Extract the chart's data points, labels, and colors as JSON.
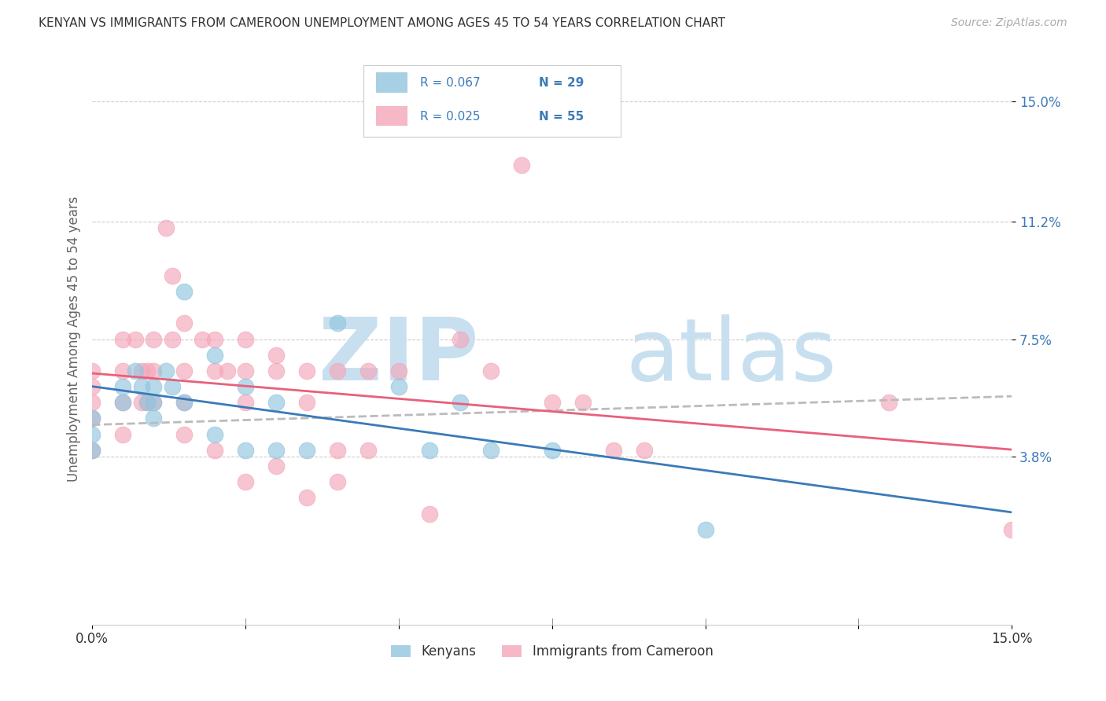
{
  "title": "KENYAN VS IMMIGRANTS FROM CAMEROON UNEMPLOYMENT AMONG AGES 45 TO 54 YEARS CORRELATION CHART",
  "source": "Source: ZipAtlas.com",
  "ylabel": "Unemployment Among Ages 45 to 54 years",
  "ytick_labels": [
    "15.0%",
    "11.2%",
    "7.5%",
    "3.8%"
  ],
  "ytick_values": [
    0.15,
    0.112,
    0.075,
    0.038
  ],
  "xlim": [
    0.0,
    0.15
  ],
  "ylim": [
    -0.015,
    0.165
  ],
  "kenyan_R": "R = 0.067",
  "kenyan_N": "N = 29",
  "cameroon_R": "R = 0.025",
  "cameroon_N": "N = 55",
  "kenyan_color": "#92c5de",
  "cameroon_color": "#f4a7b9",
  "kenyan_line_color": "#3a7ab8",
  "cameroon_line_color": "#e8607a",
  "dashed_line_color": "#bbbbbb",
  "legend_text_color": "#3a7ab8",
  "grid_color": "#cccccc",
  "background_color": "#ffffff",
  "watermark_zip": "ZIP",
  "watermark_atlas": "atlas",
  "watermark_color": "#c8dff0",
  "kenyan_scatter_x": [
    0.0,
    0.0,
    0.0,
    0.005,
    0.005,
    0.007,
    0.008,
    0.009,
    0.01,
    0.01,
    0.01,
    0.012,
    0.013,
    0.015,
    0.015,
    0.02,
    0.02,
    0.025,
    0.025,
    0.03,
    0.03,
    0.035,
    0.04,
    0.05,
    0.055,
    0.06,
    0.065,
    0.075,
    0.1
  ],
  "kenyan_scatter_y": [
    0.05,
    0.045,
    0.04,
    0.06,
    0.055,
    0.065,
    0.06,
    0.055,
    0.06,
    0.055,
    0.05,
    0.065,
    0.06,
    0.09,
    0.055,
    0.07,
    0.045,
    0.06,
    0.04,
    0.055,
    0.04,
    0.04,
    0.08,
    0.06,
    0.04,
    0.055,
    0.04,
    0.04,
    0.015
  ],
  "cameroon_scatter_x": [
    0.0,
    0.0,
    0.0,
    0.0,
    0.0,
    0.005,
    0.005,
    0.005,
    0.005,
    0.007,
    0.008,
    0.008,
    0.009,
    0.009,
    0.01,
    0.01,
    0.01,
    0.012,
    0.013,
    0.013,
    0.015,
    0.015,
    0.015,
    0.015,
    0.018,
    0.02,
    0.02,
    0.02,
    0.022,
    0.025,
    0.025,
    0.025,
    0.025,
    0.03,
    0.03,
    0.03,
    0.035,
    0.035,
    0.035,
    0.04,
    0.04,
    0.04,
    0.045,
    0.045,
    0.05,
    0.055,
    0.06,
    0.065,
    0.07,
    0.075,
    0.08,
    0.085,
    0.09,
    0.13,
    0.15
  ],
  "cameroon_scatter_y": [
    0.065,
    0.06,
    0.055,
    0.05,
    0.04,
    0.075,
    0.065,
    0.055,
    0.045,
    0.075,
    0.065,
    0.055,
    0.065,
    0.055,
    0.075,
    0.065,
    0.055,
    0.11,
    0.095,
    0.075,
    0.08,
    0.065,
    0.055,
    0.045,
    0.075,
    0.075,
    0.065,
    0.04,
    0.065,
    0.075,
    0.065,
    0.055,
    0.03,
    0.07,
    0.065,
    0.035,
    0.065,
    0.055,
    0.025,
    0.065,
    0.04,
    0.03,
    0.065,
    0.04,
    0.065,
    0.02,
    0.075,
    0.065,
    0.13,
    0.055,
    0.055,
    0.04,
    0.04,
    0.055,
    0.015
  ]
}
